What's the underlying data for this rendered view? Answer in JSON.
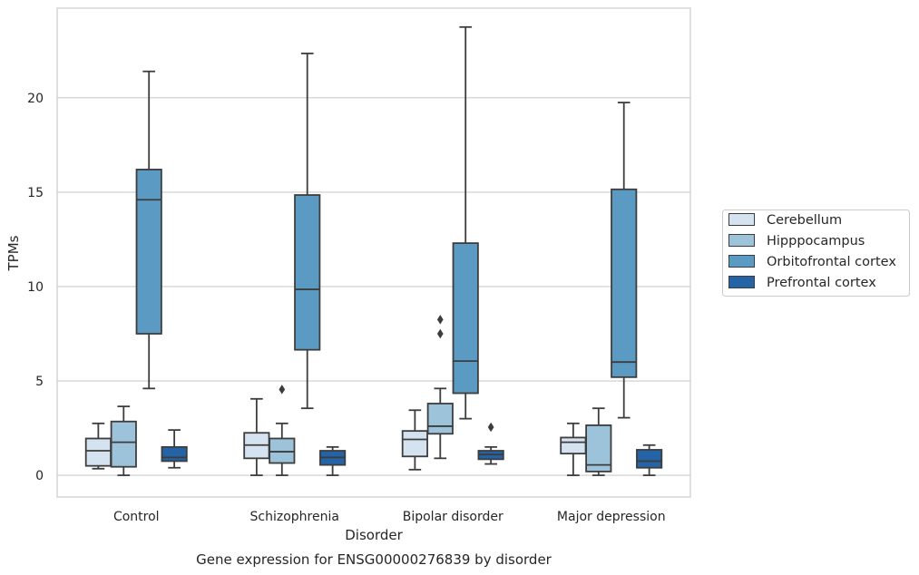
{
  "chart_data": {
    "type": "box",
    "title": "Gene expression for ENSG00000276839 by disorder",
    "xlabel": "Disorder",
    "ylabel": "TPMs",
    "ylim": [
      -1.15,
      24.75
    ],
    "yticks": [
      0,
      5,
      10,
      15,
      20
    ],
    "grid": "horizontal",
    "legend_position": "right",
    "categories": [
      "Control",
      "Schizophrenia",
      "Bipolar disorder",
      "Major depression"
    ],
    "series": [
      {
        "name": "Cerebellum",
        "color": "#d5e3f0",
        "boxes": [
          {
            "whisker_low": 0.35,
            "q1": 0.5,
            "median": 1.3,
            "q3": 1.95,
            "whisker_high": 2.75,
            "outliers": []
          },
          {
            "whisker_low": 0.0,
            "q1": 0.9,
            "median": 1.6,
            "q3": 2.25,
            "whisker_high": 4.05,
            "outliers": []
          },
          {
            "whisker_low": 0.3,
            "q1": 1.0,
            "median": 1.9,
            "q3": 2.35,
            "whisker_high": 3.45,
            "outliers": []
          },
          {
            "whisker_low": 0.0,
            "q1": 1.15,
            "median": 1.75,
            "q3": 2.0,
            "whisker_high": 2.75,
            "outliers": []
          }
        ]
      },
      {
        "name": "Hipppocampus",
        "color": "#9dc3da",
        "boxes": [
          {
            "whisker_low": 0.0,
            "q1": 0.45,
            "median": 1.75,
            "q3": 2.85,
            "whisker_high": 3.65,
            "outliers": []
          },
          {
            "whisker_low": 0.0,
            "q1": 0.65,
            "median": 1.25,
            "q3": 1.95,
            "whisker_high": 2.75,
            "outliers": [
              4.55
            ]
          },
          {
            "whisker_low": 0.9,
            "q1": 2.2,
            "median": 2.6,
            "q3": 3.8,
            "whisker_high": 4.6,
            "outliers": [
              8.25,
              7.5
            ]
          },
          {
            "whisker_low": 0.0,
            "q1": 0.2,
            "median": 0.55,
            "q3": 2.65,
            "whisker_high": 3.55,
            "outliers": []
          }
        ]
      },
      {
        "name": "Orbitofrontal cortex",
        "color": "#5b9ac3",
        "boxes": [
          {
            "whisker_low": 4.6,
            "q1": 7.5,
            "median": 14.6,
            "q3": 16.2,
            "whisker_high": 21.4,
            "outliers": []
          },
          {
            "whisker_low": 3.55,
            "q1": 6.65,
            "median": 9.85,
            "q3": 14.85,
            "whisker_high": 22.35,
            "outliers": []
          },
          {
            "whisker_low": 3.0,
            "q1": 4.35,
            "median": 6.05,
            "q3": 12.3,
            "whisker_high": 23.75,
            "outliers": []
          },
          {
            "whisker_low": 3.05,
            "q1": 5.2,
            "median": 6.0,
            "q3": 15.15,
            "whisker_high": 19.75,
            "outliers": []
          }
        ]
      },
      {
        "name": "Prefrontal cortex",
        "color": "#2464a6",
        "boxes": [
          {
            "whisker_low": 0.4,
            "q1": 0.75,
            "median": 0.95,
            "q3": 1.5,
            "whisker_high": 2.4,
            "outliers": []
          },
          {
            "whisker_low": 0.0,
            "q1": 0.55,
            "median": 0.95,
            "q3": 1.3,
            "whisker_high": 1.5,
            "outliers": []
          },
          {
            "whisker_low": 0.6,
            "q1": 0.85,
            "median": 1.1,
            "q3": 1.3,
            "whisker_high": 1.5,
            "outliers": [
              2.55
            ]
          },
          {
            "whisker_low": 0.0,
            "q1": 0.4,
            "median": 0.75,
            "q3": 1.35,
            "whisker_high": 1.6,
            "outliers": []
          }
        ]
      }
    ]
  }
}
